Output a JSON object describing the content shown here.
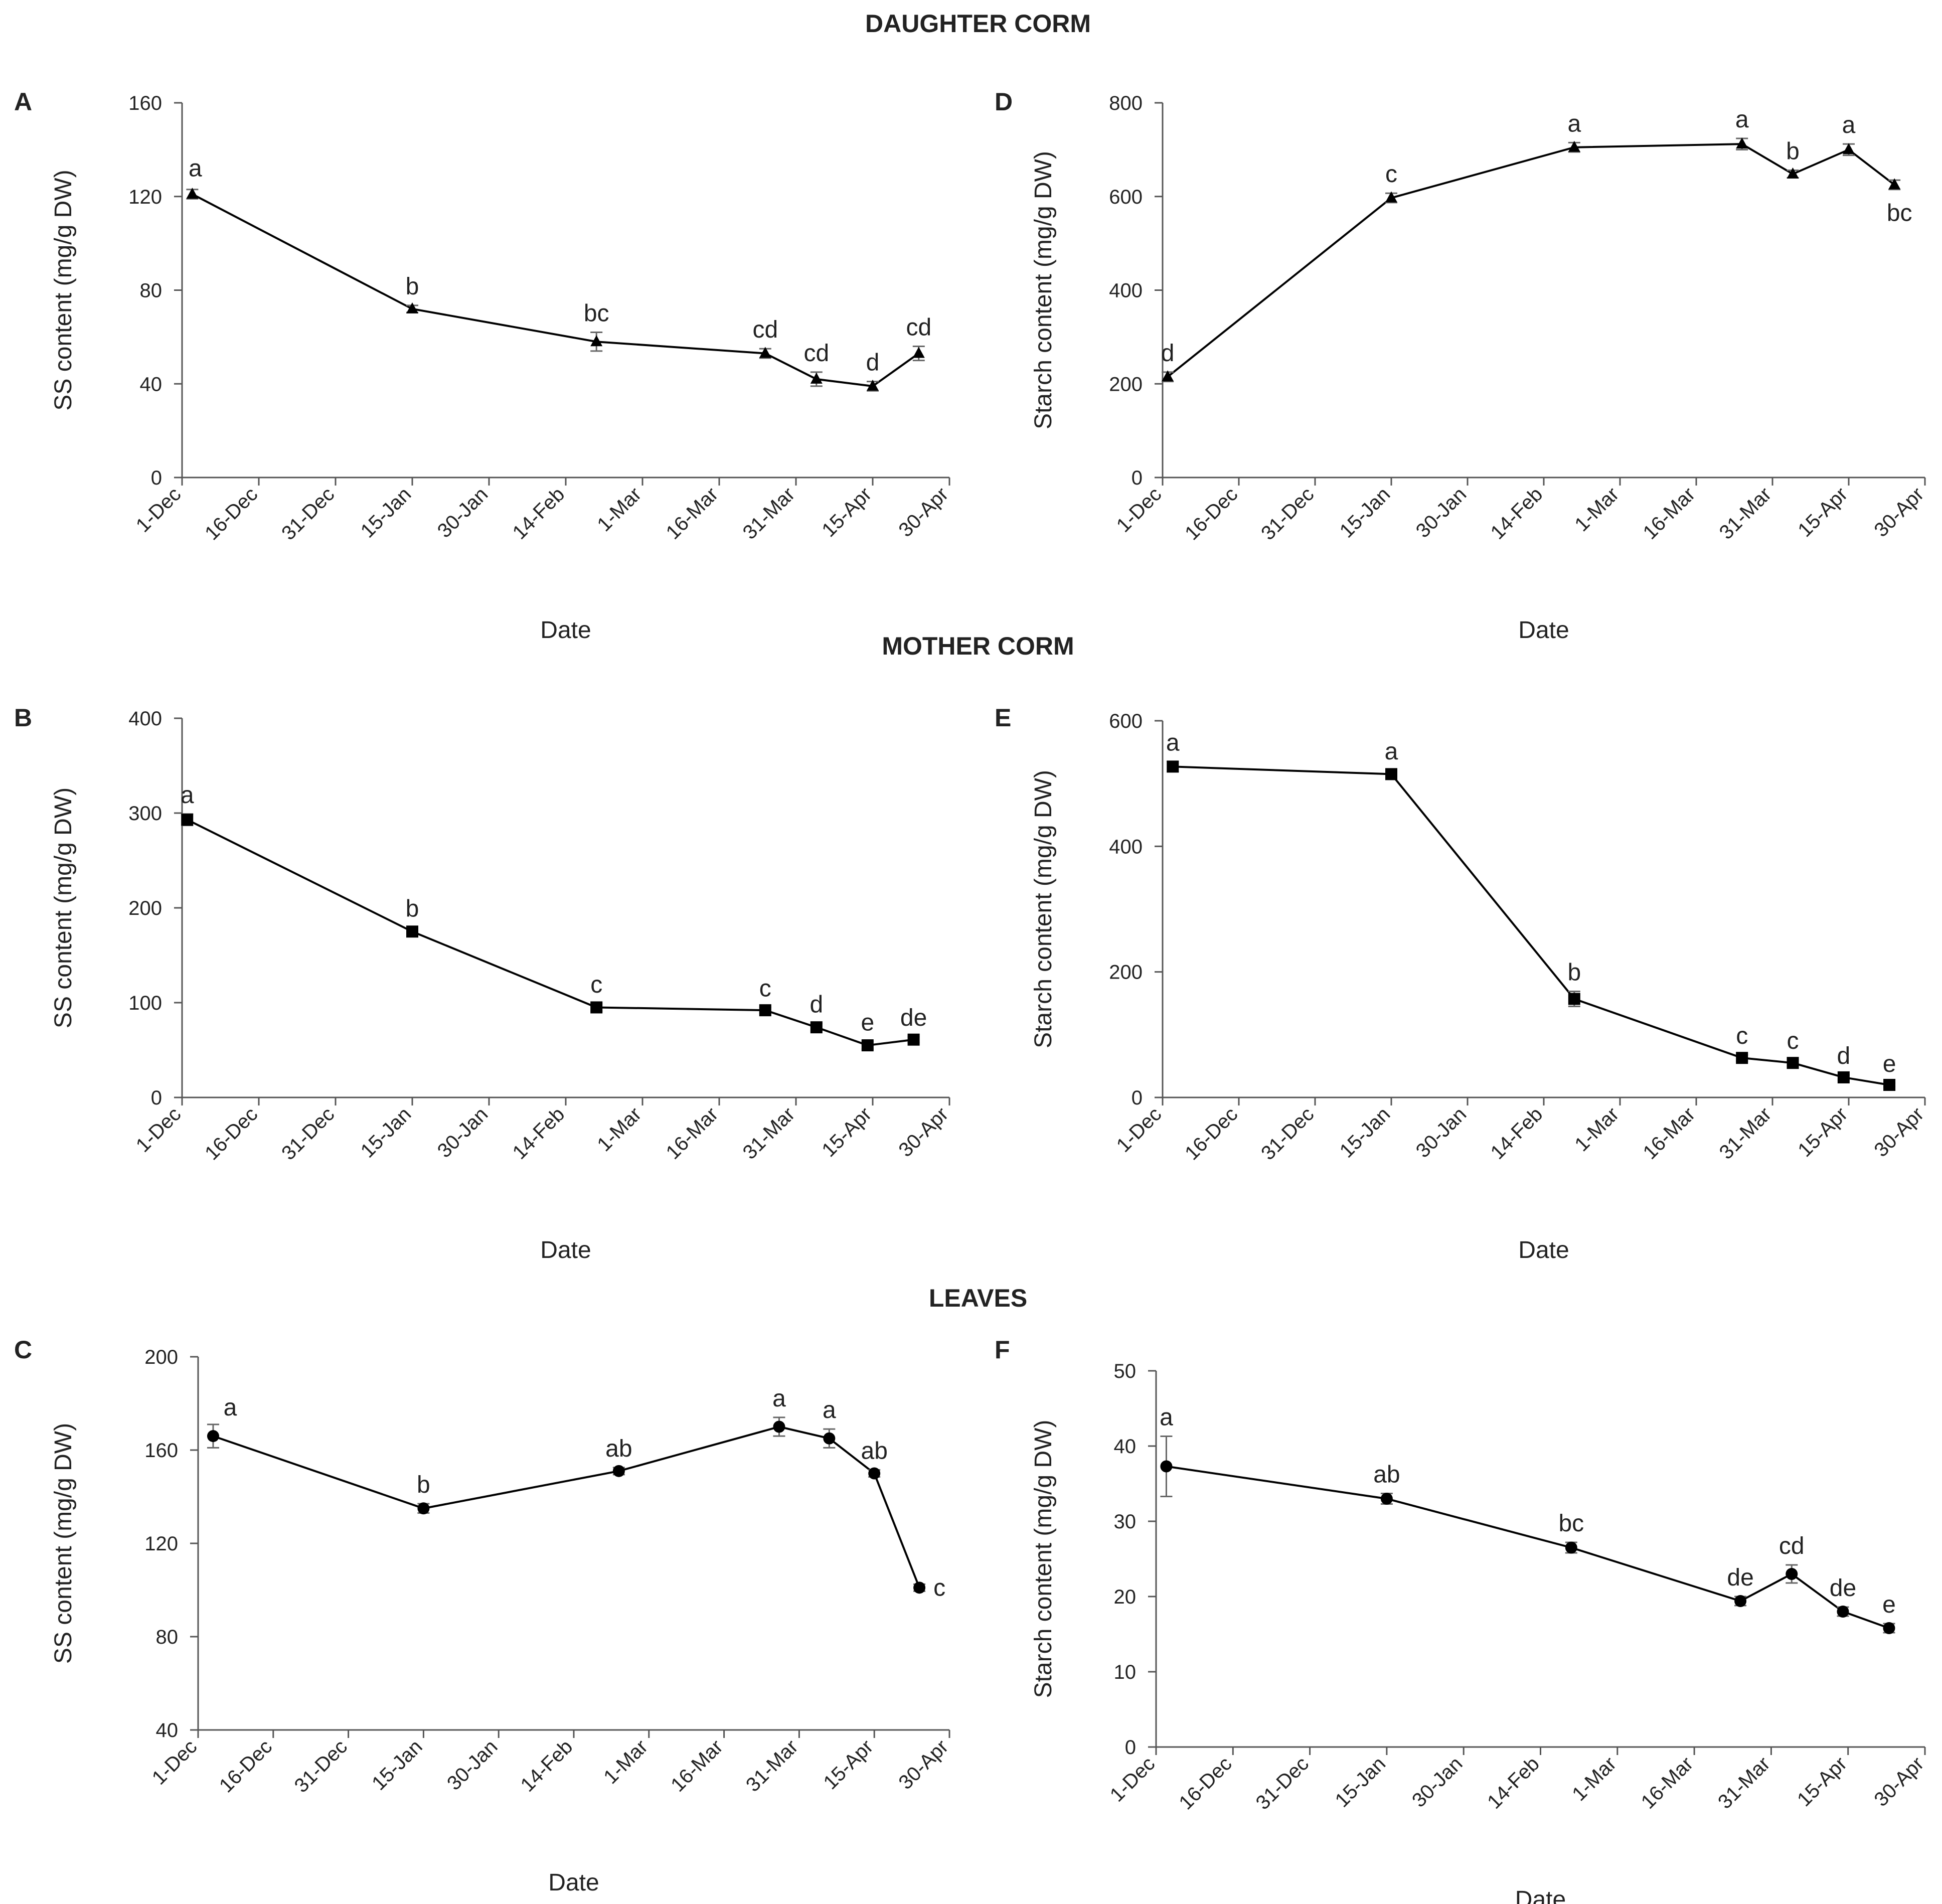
{
  "figure": {
    "sections": [
      {
        "name": "daughter",
        "title": "DAUGHTER CORM"
      },
      {
        "name": "mother",
        "title": "MOTHER CORM"
      },
      {
        "name": "leaves",
        "title": "LEAVES"
      }
    ],
    "x_tick_labels": [
      "1-Dec",
      "16-Dec",
      "31-Dec",
      "15-Jan",
      "30-Jan",
      "14-Feb",
      "1-Mar",
      "16-Mar",
      "31-Mar",
      "15-Apr",
      "30-Apr"
    ],
    "colors": {
      "line": "#000000",
      "axis": "#555555",
      "errorbar": "#666666",
      "background": "#ffffff"
    }
  },
  "chart_data": [
    {
      "panel": "A",
      "type": "line",
      "marker": "triangle",
      "xlabel": "Date",
      "ylabel": "SS content (mg/g DW)",
      "ylim": [
        0,
        160
      ],
      "yticks": [
        0,
        40,
        80,
        120,
        160
      ],
      "xlim": [
        "2018-12-01",
        "2019-04-30"
      ],
      "grid": false,
      "legend": "none",
      "points": [
        {
          "x": "2018-12-03",
          "y": 121,
          "err": 2,
          "label": "a"
        },
        {
          "x": "2019-01-15",
          "y": 72,
          "err": 1.5,
          "label": "b"
        },
        {
          "x": "2019-02-20",
          "y": 58,
          "err": 4,
          "label": "bc"
        },
        {
          "x": "2019-03-25",
          "y": 53,
          "err": 2,
          "label": "cd"
        },
        {
          "x": "2019-04-04",
          "y": 42,
          "err": 3,
          "label": "cd"
        },
        {
          "x": "2019-04-15",
          "y": 39,
          "err": 2,
          "label": "d"
        },
        {
          "x": "2019-04-24",
          "y": 53,
          "err": 3,
          "label": "cd"
        }
      ]
    },
    {
      "panel": "B",
      "type": "line",
      "marker": "square",
      "xlabel": "Date",
      "ylabel": "SS content (mg/g DW)",
      "ylim": [
        0,
        400
      ],
      "yticks": [
        0,
        100,
        200,
        300,
        400
      ],
      "xlim": [
        "2018-12-01",
        "2019-04-30"
      ],
      "grid": false,
      "legend": "none",
      "points": [
        {
          "x": "2018-12-02",
          "y": 293,
          "err": 6,
          "label": "a"
        },
        {
          "x": "2019-01-15",
          "y": 175,
          "err": 4,
          "label": "b"
        },
        {
          "x": "2019-02-20",
          "y": 95,
          "err": 4,
          "label": "c"
        },
        {
          "x": "2019-03-25",
          "y": 92,
          "err": 3,
          "label": "c"
        },
        {
          "x": "2019-04-04",
          "y": 74,
          "err": 4,
          "label": "d"
        },
        {
          "x": "2019-04-14",
          "y": 55,
          "err": 4,
          "label": "e"
        },
        {
          "x": "2019-04-23",
          "y": 61,
          "err": 3,
          "label": "de"
        }
      ]
    },
    {
      "panel": "C",
      "type": "line",
      "marker": "circle",
      "xlabel": "Date",
      "ylabel": "SS content (mg/g DW)",
      "ylim": [
        40,
        200
      ],
      "yticks": [
        40,
        80,
        120,
        160,
        200
      ],
      "xlim": [
        "2018-12-01",
        "2019-04-30"
      ],
      "grid": false,
      "legend": "none",
      "points": [
        {
          "x": "2018-12-04",
          "y": 166,
          "err": 5,
          "label": "a"
        },
        {
          "x": "2019-01-15",
          "y": 135,
          "err": 2,
          "label": "b"
        },
        {
          "x": "2019-02-23",
          "y": 151,
          "err": 1.5,
          "label": "ab"
        },
        {
          "x": "2019-03-27",
          "y": 170,
          "err": 4,
          "label": "a"
        },
        {
          "x": "2019-04-06",
          "y": 165,
          "err": 4,
          "label": "a"
        },
        {
          "x": "2019-04-15",
          "y": 150,
          "err": 1.5,
          "label": "ab"
        },
        {
          "x": "2019-04-24",
          "y": 101,
          "err": 1.5,
          "label": "c"
        }
      ]
    },
    {
      "panel": "D",
      "type": "line",
      "marker": "triangle",
      "xlabel": "Date",
      "ylabel": "Starch content (mg/g DW)",
      "ylim": [
        0,
        800
      ],
      "yticks": [
        0,
        200,
        400,
        600,
        800
      ],
      "xlim": [
        "2018-12-01",
        "2019-04-30"
      ],
      "grid": false,
      "legend": "none",
      "points": [
        {
          "x": "2018-12-02",
          "y": 215,
          "err": 10,
          "label": "d"
        },
        {
          "x": "2019-01-15",
          "y": 597,
          "err": 10,
          "label": "c"
        },
        {
          "x": "2019-02-20",
          "y": 705,
          "err": 10,
          "label": "a"
        },
        {
          "x": "2019-03-25",
          "y": 712,
          "err": 12,
          "label": "a"
        },
        {
          "x": "2019-04-04",
          "y": 648,
          "err": 8,
          "label": "b"
        },
        {
          "x": "2019-04-15",
          "y": 700,
          "err": 12,
          "label": "a"
        },
        {
          "x": "2019-04-24",
          "y": 625,
          "err": 10,
          "label": "bc"
        }
      ]
    },
    {
      "panel": "E",
      "type": "line",
      "marker": "square",
      "xlabel": "Date",
      "ylabel": "Starch content (mg/g DW)",
      "ylim": [
        0,
        600
      ],
      "yticks": [
        0,
        200,
        400,
        600
      ],
      "xlim": [
        "2018-12-01",
        "2019-04-30"
      ],
      "grid": false,
      "legend": "none",
      "points": [
        {
          "x": "2018-12-03",
          "y": 527,
          "err": 8,
          "label": "a"
        },
        {
          "x": "2019-01-15",
          "y": 515,
          "err": 6,
          "label": "a"
        },
        {
          "x": "2019-02-20",
          "y": 157,
          "err": 12,
          "label": "b"
        },
        {
          "x": "2019-03-25",
          "y": 63,
          "err": 5,
          "label": "c"
        },
        {
          "x": "2019-04-04",
          "y": 55,
          "err": 5,
          "label": "c"
        },
        {
          "x": "2019-04-14",
          "y": 32,
          "err": 4,
          "label": "d"
        },
        {
          "x": "2019-04-23",
          "y": 20,
          "err": 3,
          "label": "e"
        }
      ]
    },
    {
      "panel": "F",
      "type": "line",
      "marker": "circle",
      "xlabel": "Date",
      "ylabel": "Starch content (mg/g DW)",
      "ylim": [
        0,
        50
      ],
      "yticks": [
        0,
        10,
        20,
        30,
        40,
        50
      ],
      "xlim": [
        "2018-12-01",
        "2019-04-30"
      ],
      "grid": false,
      "legend": "none",
      "points": [
        {
          "x": "2018-12-03",
          "y": 37.3,
          "err": 4,
          "label": "a"
        },
        {
          "x": "2019-01-15",
          "y": 33,
          "err": 0.7,
          "label": "ab"
        },
        {
          "x": "2019-02-20",
          "y": 26.5,
          "err": 0.7,
          "label": "bc"
        },
        {
          "x": "2019-03-25",
          "y": 19.4,
          "err": 0.6,
          "label": "de"
        },
        {
          "x": "2019-04-04",
          "y": 23,
          "err": 1.2,
          "label": "cd"
        },
        {
          "x": "2019-04-14",
          "y": 18,
          "err": 0.6,
          "label": "de"
        },
        {
          "x": "2019-04-23",
          "y": 15.8,
          "err": 0.6,
          "label": "e"
        }
      ]
    }
  ]
}
